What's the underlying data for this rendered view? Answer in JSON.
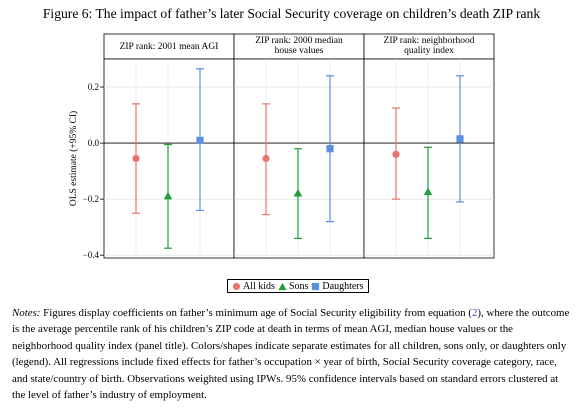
{
  "figure_title": "Figure 6: The impact of father’s later Social Security coverage on children’s death ZIP rank",
  "notes": {
    "lead": "Notes:",
    "text_1": " Figures display coefficients on father’s minimum age of Social Security eligibility from equation (",
    "ref": "2",
    "text_2": "), where the outcome is the average percentile rank of his children’s ZIP code at death in terms of mean AGI, median house values or the neighborhood quality index (panel title). Colors/shapes indicate separate estimates for all children, sons only, or daughters only (legend). All regressions include fixed effects for father’s occupation × year of birth, Social Security coverage category, race, and state/country of birth. Observations weighted using IPWs. 95% confidence intervals based on standard errors clustered at the level of father’s industry of employment."
  },
  "legend": [
    {
      "label": "All kids",
      "marker": "circle",
      "color": "#e8746c"
    },
    {
      "label": "Sons",
      "marker": "triangle",
      "color": "#1f9e3a"
    },
    {
      "label": "Daughters",
      "marker": "square",
      "color": "#5b8fe0"
    }
  ],
  "chart_data": {
    "type": "scatter",
    "ylabel": "OLS estimate (+95% CI)",
    "ylim": [
      -0.41,
      0.3
    ],
    "yticks": [
      0.2,
      0.0,
      -0.2,
      -0.4
    ],
    "ytick_labels": [
      "0.2",
      "0.0",
      "−0.2",
      "−0.4"
    ],
    "reference_line": 0,
    "grid": true,
    "legend_position": "bottom-center",
    "panels": [
      {
        "title": "ZIP rank: 2001 mean AGI",
        "series": [
          {
            "name": "All kids",
            "estimate": -0.055,
            "ci_low": -0.25,
            "ci_high": 0.14
          },
          {
            "name": "Sons",
            "estimate": -0.19,
            "ci_low": -0.375,
            "ci_high": -0.005
          },
          {
            "name": "Daughters",
            "estimate": 0.01,
            "ci_low": -0.24,
            "ci_high": 0.265
          }
        ]
      },
      {
        "title": "ZIP rank: 2000 median house values",
        "series": [
          {
            "name": "All kids",
            "estimate": -0.055,
            "ci_low": -0.255,
            "ci_high": 0.14
          },
          {
            "name": "Sons",
            "estimate": -0.18,
            "ci_low": -0.34,
            "ci_high": -0.02
          },
          {
            "name": "Daughters",
            "estimate": -0.02,
            "ci_low": -0.28,
            "ci_high": 0.24
          }
        ]
      },
      {
        "title": "ZIP rank: neighborhood quality index",
        "series": [
          {
            "name": "All kids",
            "estimate": -0.04,
            "ci_low": -0.2,
            "ci_high": 0.125
          },
          {
            "name": "Sons",
            "estimate": -0.175,
            "ci_low": -0.34,
            "ci_high": -0.015
          },
          {
            "name": "Daughters",
            "estimate": 0.015,
            "ci_low": -0.21,
            "ci_high": 0.24
          }
        ]
      }
    ]
  }
}
